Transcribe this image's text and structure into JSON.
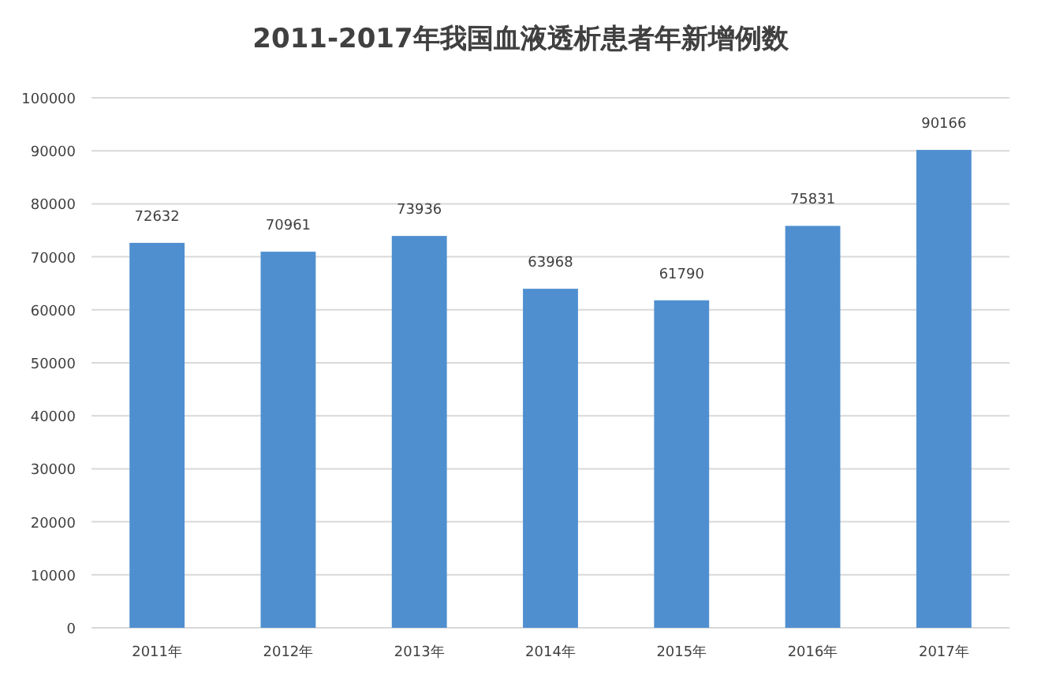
{
  "chart_data": {
    "type": "bar",
    "title": "2011-2017年我国血液透析患者年新增例数",
    "categories": [
      "2011年",
      "2012年",
      "2013年",
      "2014年",
      "2015年",
      "2016年",
      "2017年"
    ],
    "values": [
      72632,
      70961,
      73936,
      63968,
      61790,
      75831,
      90166
    ],
    "color": "#4f8fd0",
    "ylim": [
      0,
      100000
    ],
    "yticks": [
      0,
      10000,
      20000,
      30000,
      40000,
      50000,
      60000,
      70000,
      80000,
      90000,
      100000
    ],
    "grid": "y",
    "data_labels": true
  }
}
